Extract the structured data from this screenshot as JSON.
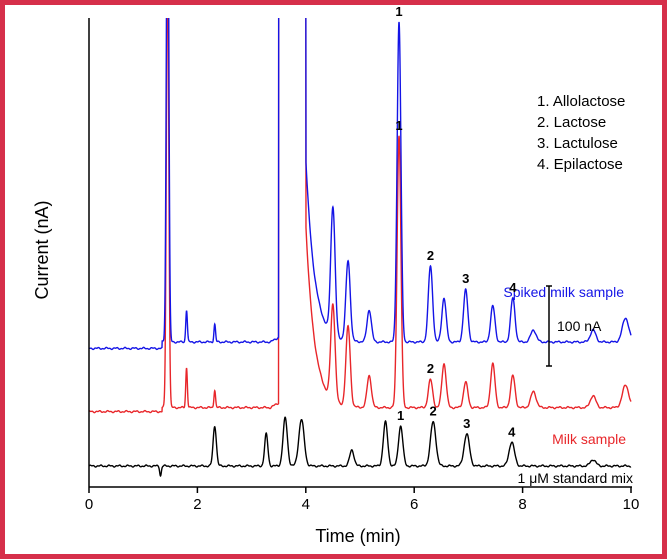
{
  "chart_data": {
    "type": "line",
    "xlabel": "Time (min)",
    "ylabel": "Current (nA)",
    "xlim": [
      0,
      10
    ],
    "ylim_trace_units_nA": [
      -70,
      1000
    ],
    "xticks": [
      0,
      2,
      4,
      6,
      8,
      10
    ],
    "xtick_labels": [
      "0",
      "2",
      "4",
      "6",
      "8",
      "10"
    ],
    "grid": false,
    "legend": {
      "placement": "top-right",
      "entries": [
        "1. Allolactose",
        "2. Lactose",
        "3. Lactulose",
        "4. Epilactose"
      ]
    },
    "scale_bar": {
      "value_nA": 100,
      "label": "100 nA"
    },
    "series": [
      {
        "name": "1 μM standard mix",
        "color": "#000000",
        "baseline_nA": 0,
        "peaks": [
          {
            "t": 1.32,
            "h": -12,
            "w": 0.015
          },
          {
            "t": 2.32,
            "h": 50,
            "w": 0.03
          },
          {
            "t": 3.27,
            "h": 40,
            "w": 0.03
          },
          {
            "t": 3.62,
            "h": 60,
            "w": 0.04
          },
          {
            "t": 3.92,
            "h": 58,
            "w": 0.05
          },
          {
            "t": 4.85,
            "h": 20,
            "w": 0.04
          },
          {
            "t": 5.47,
            "h": 55,
            "w": 0.04
          },
          {
            "t": 5.75,
            "h": 50,
            "w": 0.04
          },
          {
            "t": 6.35,
            "h": 55,
            "w": 0.05
          },
          {
            "t": 6.97,
            "h": 40,
            "w": 0.05
          },
          {
            "t": 7.8,
            "h": 30,
            "w": 0.05
          },
          {
            "t": 9.3,
            "h": 8,
            "w": 0.05
          }
        ],
        "peak_labels": [
          {
            "t": 5.75,
            "label": "1"
          },
          {
            "t": 6.35,
            "label": "2"
          },
          {
            "t": 6.97,
            "label": "3"
          },
          {
            "t": 7.8,
            "label": "4"
          }
        ]
      },
      {
        "name": "Milk sample",
        "color": "#e8262a",
        "baseline_nA": 73,
        "peaks": [
          {
            "t": 1.45,
            "h": 560,
            "w": 0.022
          },
          {
            "t": 1.8,
            "h": 50,
            "w": 0.015
          },
          {
            "t": 2.32,
            "h": 22,
            "w": 0.015
          },
          {
            "t": 3.72,
            "h": 650,
            "w": 0.03
          },
          {
            "t": 4.5,
            "h": 120,
            "w": 0.04
          },
          {
            "t": 4.78,
            "h": 100,
            "w": 0.04
          },
          {
            "t": 5.17,
            "h": 40,
            "w": 0.04
          },
          {
            "t": 5.72,
            "h": 340,
            "w": 0.035
          },
          {
            "t": 6.3,
            "h": 35,
            "w": 0.04
          },
          {
            "t": 6.55,
            "h": 55,
            "w": 0.04
          },
          {
            "t": 6.95,
            "h": 32,
            "w": 0.04
          },
          {
            "t": 7.45,
            "h": 55,
            "w": 0.04
          },
          {
            "t": 7.82,
            "h": 40,
            "w": 0.04
          },
          {
            "t": 8.2,
            "h": 20,
            "w": 0.05
          },
          {
            "t": 9.3,
            "h": 15,
            "w": 0.05
          },
          {
            "t": 9.9,
            "h": 28,
            "w": 0.06
          }
        ],
        "peak_labels": [
          {
            "t": 5.72,
            "label": "1"
          },
          {
            "t": 6.3,
            "label": "2"
          }
        ]
      },
      {
        "name": "Spiked milk sample",
        "color": "#1414e6",
        "baseline_nA": 155,
        "peaks": [
          {
            "t": 1.45,
            "h": 660,
            "w": 0.022
          },
          {
            "t": 1.8,
            "h": 40,
            "w": 0.015
          },
          {
            "t": 2.32,
            "h": 22,
            "w": 0.015
          },
          {
            "t": 4.5,
            "h": 160,
            "w": 0.04
          },
          {
            "t": 4.78,
            "h": 100,
            "w": 0.04
          },
          {
            "t": 5.17,
            "h": 40,
            "w": 0.04
          },
          {
            "t": 5.72,
            "h": 400,
            "w": 0.035
          },
          {
            "t": 6.3,
            "h": 95,
            "w": 0.04
          },
          {
            "t": 6.55,
            "h": 55,
            "w": 0.04
          },
          {
            "t": 6.95,
            "h": 65,
            "w": 0.04
          },
          {
            "t": 7.45,
            "h": 45,
            "w": 0.04
          },
          {
            "t": 7.82,
            "h": 55,
            "w": 0.04
          },
          {
            "t": 8.2,
            "h": 15,
            "w": 0.05
          },
          {
            "t": 9.3,
            "h": 15,
            "w": 0.05
          },
          {
            "t": 9.9,
            "h": 30,
            "w": 0.06
          }
        ],
        "peak_labels": [
          {
            "t": 5.72,
            "label": "1"
          },
          {
            "t": 6.3,
            "label": "2"
          },
          {
            "t": 6.95,
            "label": "3"
          },
          {
            "t": 7.82,
            "label": "4"
          }
        ]
      }
    ]
  }
}
